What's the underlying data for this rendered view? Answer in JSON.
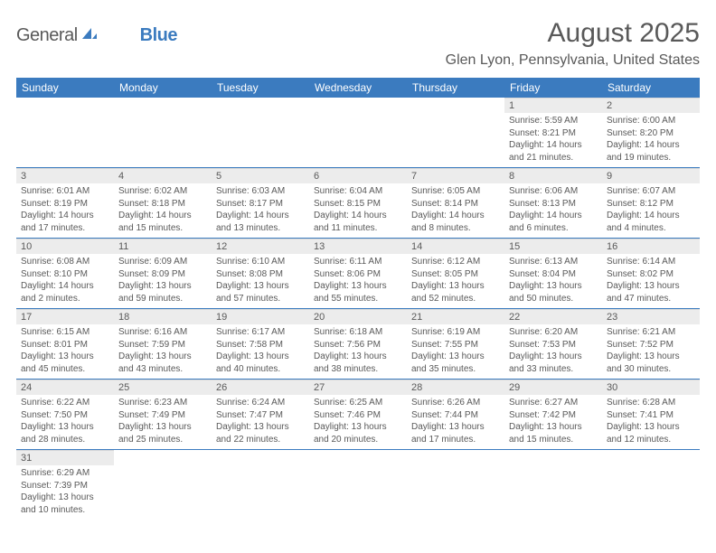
{
  "logo": {
    "text1": "General",
    "text2": "Blue"
  },
  "title": "August 2025",
  "location": "Glen Lyon, Pennsylvania, United States",
  "colors": {
    "header_bg": "#3b7bbf",
    "header_text": "#ffffff",
    "daynum_bg": "#ececec",
    "row_border": "#3b7bbf",
    "text": "#595959"
  },
  "day_headers": [
    "Sunday",
    "Monday",
    "Tuesday",
    "Wednesday",
    "Thursday",
    "Friday",
    "Saturday"
  ],
  "weeks": [
    [
      {
        "num": "",
        "sunrise": "",
        "sunset": "",
        "daylight": ""
      },
      {
        "num": "",
        "sunrise": "",
        "sunset": "",
        "daylight": ""
      },
      {
        "num": "",
        "sunrise": "",
        "sunset": "",
        "daylight": ""
      },
      {
        "num": "",
        "sunrise": "",
        "sunset": "",
        "daylight": ""
      },
      {
        "num": "",
        "sunrise": "",
        "sunset": "",
        "daylight": ""
      },
      {
        "num": "1",
        "sunrise": "Sunrise: 5:59 AM",
        "sunset": "Sunset: 8:21 PM",
        "daylight": "Daylight: 14 hours and 21 minutes."
      },
      {
        "num": "2",
        "sunrise": "Sunrise: 6:00 AM",
        "sunset": "Sunset: 8:20 PM",
        "daylight": "Daylight: 14 hours and 19 minutes."
      }
    ],
    [
      {
        "num": "3",
        "sunrise": "Sunrise: 6:01 AM",
        "sunset": "Sunset: 8:19 PM",
        "daylight": "Daylight: 14 hours and 17 minutes."
      },
      {
        "num": "4",
        "sunrise": "Sunrise: 6:02 AM",
        "sunset": "Sunset: 8:18 PM",
        "daylight": "Daylight: 14 hours and 15 minutes."
      },
      {
        "num": "5",
        "sunrise": "Sunrise: 6:03 AM",
        "sunset": "Sunset: 8:17 PM",
        "daylight": "Daylight: 14 hours and 13 minutes."
      },
      {
        "num": "6",
        "sunrise": "Sunrise: 6:04 AM",
        "sunset": "Sunset: 8:15 PM",
        "daylight": "Daylight: 14 hours and 11 minutes."
      },
      {
        "num": "7",
        "sunrise": "Sunrise: 6:05 AM",
        "sunset": "Sunset: 8:14 PM",
        "daylight": "Daylight: 14 hours and 8 minutes."
      },
      {
        "num": "8",
        "sunrise": "Sunrise: 6:06 AM",
        "sunset": "Sunset: 8:13 PM",
        "daylight": "Daylight: 14 hours and 6 minutes."
      },
      {
        "num": "9",
        "sunrise": "Sunrise: 6:07 AM",
        "sunset": "Sunset: 8:12 PM",
        "daylight": "Daylight: 14 hours and 4 minutes."
      }
    ],
    [
      {
        "num": "10",
        "sunrise": "Sunrise: 6:08 AM",
        "sunset": "Sunset: 8:10 PM",
        "daylight": "Daylight: 14 hours and 2 minutes."
      },
      {
        "num": "11",
        "sunrise": "Sunrise: 6:09 AM",
        "sunset": "Sunset: 8:09 PM",
        "daylight": "Daylight: 13 hours and 59 minutes."
      },
      {
        "num": "12",
        "sunrise": "Sunrise: 6:10 AM",
        "sunset": "Sunset: 8:08 PM",
        "daylight": "Daylight: 13 hours and 57 minutes."
      },
      {
        "num": "13",
        "sunrise": "Sunrise: 6:11 AM",
        "sunset": "Sunset: 8:06 PM",
        "daylight": "Daylight: 13 hours and 55 minutes."
      },
      {
        "num": "14",
        "sunrise": "Sunrise: 6:12 AM",
        "sunset": "Sunset: 8:05 PM",
        "daylight": "Daylight: 13 hours and 52 minutes."
      },
      {
        "num": "15",
        "sunrise": "Sunrise: 6:13 AM",
        "sunset": "Sunset: 8:04 PM",
        "daylight": "Daylight: 13 hours and 50 minutes."
      },
      {
        "num": "16",
        "sunrise": "Sunrise: 6:14 AM",
        "sunset": "Sunset: 8:02 PM",
        "daylight": "Daylight: 13 hours and 47 minutes."
      }
    ],
    [
      {
        "num": "17",
        "sunrise": "Sunrise: 6:15 AM",
        "sunset": "Sunset: 8:01 PM",
        "daylight": "Daylight: 13 hours and 45 minutes."
      },
      {
        "num": "18",
        "sunrise": "Sunrise: 6:16 AM",
        "sunset": "Sunset: 7:59 PM",
        "daylight": "Daylight: 13 hours and 43 minutes."
      },
      {
        "num": "19",
        "sunrise": "Sunrise: 6:17 AM",
        "sunset": "Sunset: 7:58 PM",
        "daylight": "Daylight: 13 hours and 40 minutes."
      },
      {
        "num": "20",
        "sunrise": "Sunrise: 6:18 AM",
        "sunset": "Sunset: 7:56 PM",
        "daylight": "Daylight: 13 hours and 38 minutes."
      },
      {
        "num": "21",
        "sunrise": "Sunrise: 6:19 AM",
        "sunset": "Sunset: 7:55 PM",
        "daylight": "Daylight: 13 hours and 35 minutes."
      },
      {
        "num": "22",
        "sunrise": "Sunrise: 6:20 AM",
        "sunset": "Sunset: 7:53 PM",
        "daylight": "Daylight: 13 hours and 33 minutes."
      },
      {
        "num": "23",
        "sunrise": "Sunrise: 6:21 AM",
        "sunset": "Sunset: 7:52 PM",
        "daylight": "Daylight: 13 hours and 30 minutes."
      }
    ],
    [
      {
        "num": "24",
        "sunrise": "Sunrise: 6:22 AM",
        "sunset": "Sunset: 7:50 PM",
        "daylight": "Daylight: 13 hours and 28 minutes."
      },
      {
        "num": "25",
        "sunrise": "Sunrise: 6:23 AM",
        "sunset": "Sunset: 7:49 PM",
        "daylight": "Daylight: 13 hours and 25 minutes."
      },
      {
        "num": "26",
        "sunrise": "Sunrise: 6:24 AM",
        "sunset": "Sunset: 7:47 PM",
        "daylight": "Daylight: 13 hours and 22 minutes."
      },
      {
        "num": "27",
        "sunrise": "Sunrise: 6:25 AM",
        "sunset": "Sunset: 7:46 PM",
        "daylight": "Daylight: 13 hours and 20 minutes."
      },
      {
        "num": "28",
        "sunrise": "Sunrise: 6:26 AM",
        "sunset": "Sunset: 7:44 PM",
        "daylight": "Daylight: 13 hours and 17 minutes."
      },
      {
        "num": "29",
        "sunrise": "Sunrise: 6:27 AM",
        "sunset": "Sunset: 7:42 PM",
        "daylight": "Daylight: 13 hours and 15 minutes."
      },
      {
        "num": "30",
        "sunrise": "Sunrise: 6:28 AM",
        "sunset": "Sunset: 7:41 PM",
        "daylight": "Daylight: 13 hours and 12 minutes."
      }
    ],
    [
      {
        "num": "31",
        "sunrise": "Sunrise: 6:29 AM",
        "sunset": "Sunset: 7:39 PM",
        "daylight": "Daylight: 13 hours and 10 minutes."
      },
      {
        "num": "",
        "sunrise": "",
        "sunset": "",
        "daylight": ""
      },
      {
        "num": "",
        "sunrise": "",
        "sunset": "",
        "daylight": ""
      },
      {
        "num": "",
        "sunrise": "",
        "sunset": "",
        "daylight": ""
      },
      {
        "num": "",
        "sunrise": "",
        "sunset": "",
        "daylight": ""
      },
      {
        "num": "",
        "sunrise": "",
        "sunset": "",
        "daylight": ""
      },
      {
        "num": "",
        "sunrise": "",
        "sunset": "",
        "daylight": ""
      }
    ]
  ]
}
